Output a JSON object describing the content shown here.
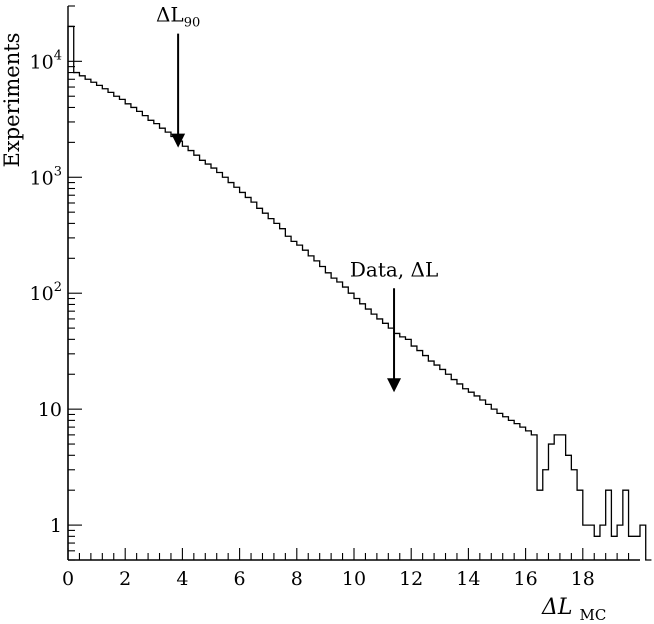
{
  "chart_data": {
    "type": "histogram",
    "ylabel": "Experiments",
    "xlabel_main": "ΔL",
    "xlabel_sub": "MC",
    "xlim": [
      0,
      20
    ],
    "ylim": [
      0.5,
      30000
    ],
    "yscale": "log",
    "grid": false,
    "x_ticks": [
      "0",
      "2",
      "4",
      "6",
      "8",
      "10",
      "12",
      "14",
      "16",
      "18"
    ],
    "y_ticks": [
      {
        "base": "10",
        "exp": "4",
        "value": 10000
      },
      {
        "base": "10",
        "exp": "3",
        "value": 1000
      },
      {
        "base": "10",
        "exp": "2",
        "value": 100
      },
      {
        "base": "10",
        "exp": "",
        "value": 10
      },
      {
        "base": "1",
        "exp": "",
        "value": 1
      }
    ],
    "bin_width": 0.2,
    "counts": [
      20000,
      8000,
      7500,
      7000,
      6600,
      6200,
      5800,
      5400,
      5000,
      4700,
      4300,
      4000,
      3700,
      3400,
      3100,
      2900,
      2650,
      2450,
      2250,
      2050,
      1850,
      1700,
      1550,
      1400,
      1300,
      1200,
      1100,
      1000,
      900,
      820,
      740,
      670,
      610,
      540,
      490,
      440,
      400,
      360,
      310,
      280,
      260,
      235,
      210,
      190,
      170,
      150,
      135,
      125,
      113,
      100,
      90,
      81,
      73,
      66,
      60,
      55,
      50,
      45,
      42,
      40,
      35,
      32,
      29,
      26,
      24,
      22,
      20,
      18,
      16.5,
      15,
      14,
      13,
      12,
      11,
      10,
      9.2,
      8.6,
      8.0,
      7.5,
      7.0,
      6.5,
      6.0,
      2.0,
      3.0,
      5.0,
      6.0,
      6.0,
      4.0,
      3.0,
      2.0,
      1.0,
      1.0,
      0.8,
      1.0,
      2.0,
      0.8,
      1.0,
      2.0,
      0.8,
      0.8,
      1.0,
      0.5
    ],
    "annotations": [
      {
        "label_main": "ΔL",
        "label_sub": "90",
        "x": 3.85,
        "y_tip": 1800,
        "y_text": 22000
      },
      {
        "label_main": "Data, ΔL",
        "label_sub": "",
        "x": 11.4,
        "y_tip": 14,
        "y_text": 140
      }
    ]
  }
}
